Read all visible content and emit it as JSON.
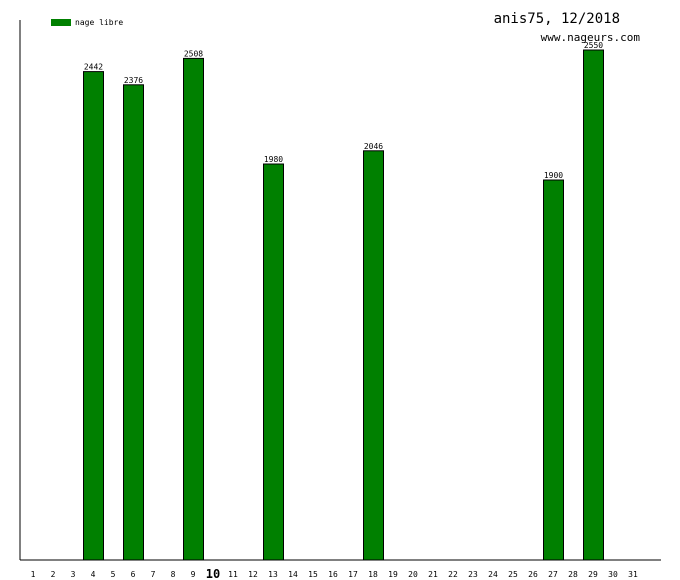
{
  "chart_data": {
    "type": "bar",
    "title": "anis75, 12/2018",
    "subtitle": "www.nageurs.com",
    "xlabel": "",
    "ylabel": "",
    "ylim": [
      0,
      2700
    ],
    "categories": [
      "1",
      "2",
      "3",
      "4",
      "5",
      "6",
      "7",
      "8",
      "9",
      "10",
      "11",
      "12",
      "13",
      "14",
      "15",
      "16",
      "17",
      "18",
      "19",
      "20",
      "21",
      "22",
      "23",
      "24",
      "25",
      "26",
      "27",
      "28",
      "29",
      "30",
      "31"
    ],
    "highlight_category": "10",
    "series": [
      {
        "name": "nage libre",
        "color": "#008000",
        "values": [
          null,
          null,
          null,
          2442,
          null,
          2376,
          null,
          null,
          2508,
          null,
          null,
          null,
          1980,
          null,
          null,
          null,
          null,
          2046,
          null,
          null,
          null,
          null,
          null,
          null,
          null,
          null,
          1900,
          null,
          2550,
          null,
          null
        ]
      }
    ],
    "legend": "top-left",
    "grid": false
  }
}
